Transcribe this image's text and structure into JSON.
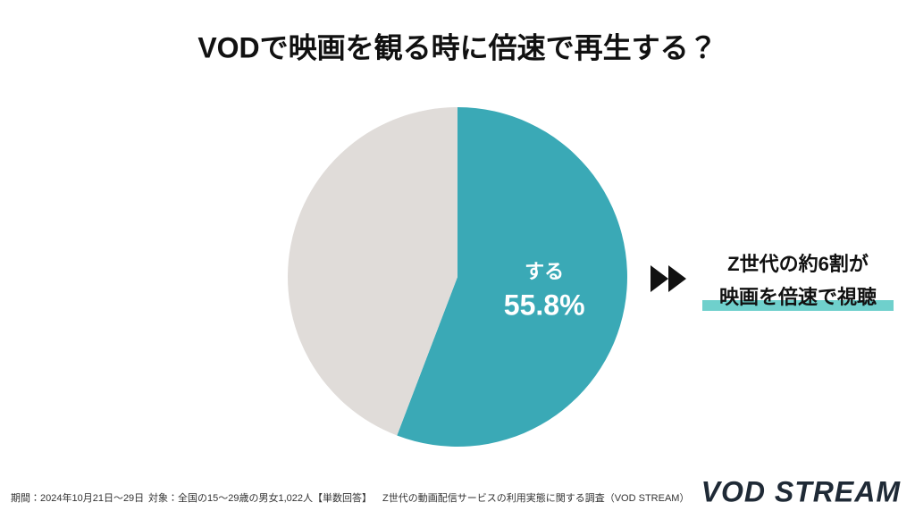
{
  "chart_data": {
    "type": "pie",
    "title": "VODで映画を観る時に倍速で再生する？",
    "categories": [
      "する",
      null
    ],
    "values": [
      55.8,
      44.2
    ],
    "value_labels": [
      "55.8%",
      null
    ],
    "colors": [
      "#3aa9b6",
      "#e0dcd9"
    ],
    "annotation": [
      "Z世代の約6割が",
      "映画を倍速で視聴"
    ],
    "annotation_highlight": "#6fd0cc"
  },
  "footer": {
    "period": "期間：2024年10月21日〜29日",
    "target": "対象：全国の15〜29歳の男女1,022人【単数回答】",
    "survey": "Z世代の動画配信サービスの利用実態に関する調査（VOD STREAM）"
  },
  "logo": "VOD STREAM"
}
